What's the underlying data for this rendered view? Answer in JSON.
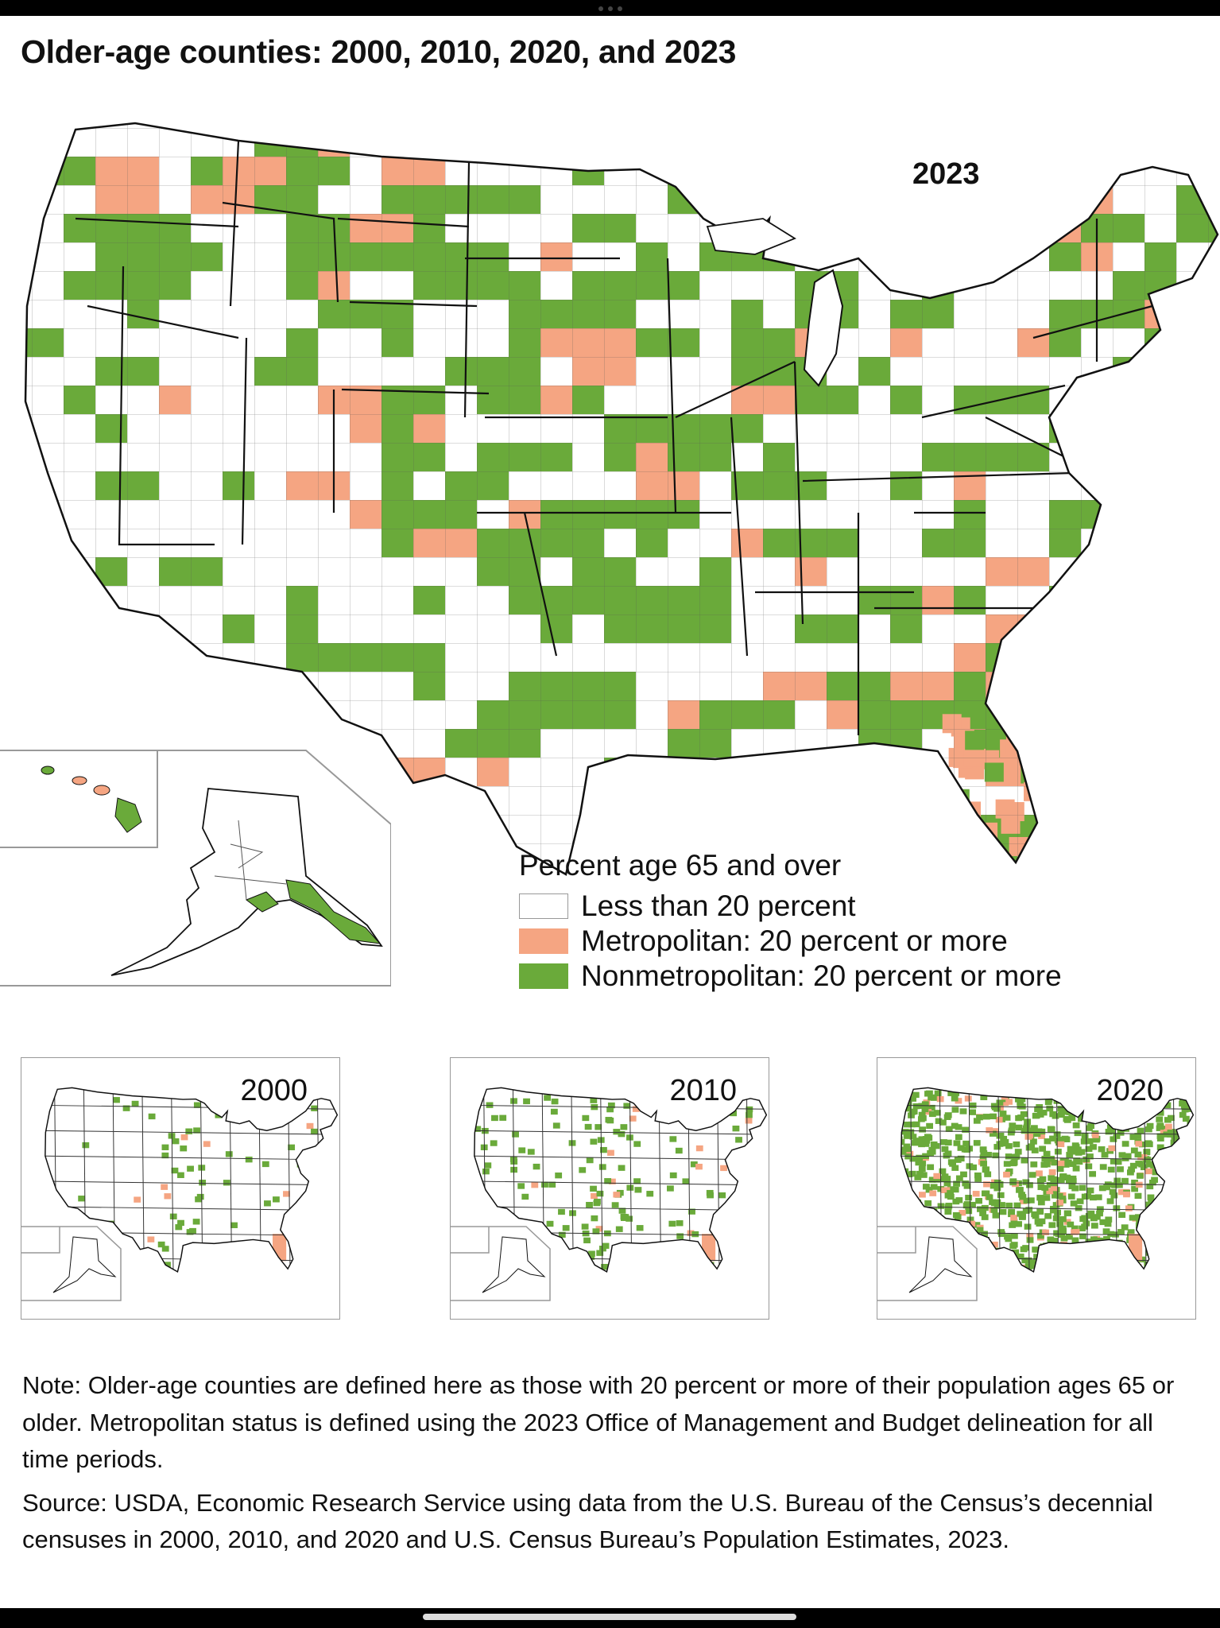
{
  "title": "Older-age counties: 2000, 2010, 2020, and 2023",
  "main_map": {
    "year": "2023"
  },
  "legend": {
    "title": "Percent age 65 and over",
    "items": [
      {
        "label": "Less than 20 percent",
        "color": "#ffffff"
      },
      {
        "label": "Metropolitan: 20 percent or more",
        "color": "#f5a582"
      },
      {
        "label": "Nonmetropolitan: 20 percent or more",
        "color": "#6aaa3a"
      }
    ]
  },
  "small_maps": [
    {
      "year": "2000"
    },
    {
      "year": "2010"
    },
    {
      "year": "2020"
    }
  ],
  "note": "Note: Older-age counties are defined here as those with 20 percent or more of their population ages 65 or older. Metropolitan status is defined using the 2023 Office of Management and Budget delineation for all time periods.",
  "source": "Source: USDA, Economic Research Service using data from the U.S. Bureau of the Census’s decennial censuses in 2000, 2010, and 2020 and U.S. Census Bureau’s Population Estimates, 2023.",
  "colors": {
    "green": "#6aaa3a",
    "metro": "#f5a582",
    "border": "#222222"
  }
}
